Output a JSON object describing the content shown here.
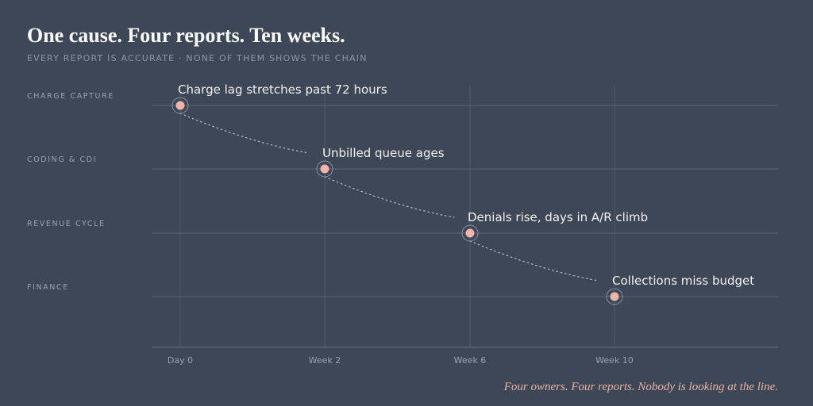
{
  "header": {
    "title": "One cause. Four reports. Ten weeks.",
    "subtitle": "EVERY REPORT IS ACCURATE · NONE OF THEM SHOWS THE CHAIN"
  },
  "footnote": "Four owners. Four reports. Nobody is looking at the line.",
  "colors": {
    "background": "#3e4756",
    "point": "#f0b4a9",
    "gridline": "#5c6574",
    "connector": "#b9bec7"
  },
  "chart_data": {
    "type": "scatter",
    "x_ticks": [
      {
        "label": "Day 0",
        "week": 0
      },
      {
        "label": "Week 2",
        "week": 2
      },
      {
        "label": "Week 6",
        "week": 6
      },
      {
        "label": "Week 10",
        "week": 10
      }
    ],
    "lanes": [
      "CHARGE CAPTURE",
      "CODING & CDI",
      "REVENUE CYCLE",
      "FINANCE"
    ],
    "points": [
      {
        "tick": 0,
        "lane": 0,
        "label": "Charge lag stretches past 72 hours"
      },
      {
        "tick": 1,
        "lane": 1,
        "label": "Unbilled queue ages"
      },
      {
        "tick": 2,
        "lane": 2,
        "label": "Denials rise, days in A/R climb"
      },
      {
        "tick": 3,
        "lane": 3,
        "label": "Collections miss budget"
      }
    ],
    "connector": "dotted",
    "grid": true
  }
}
